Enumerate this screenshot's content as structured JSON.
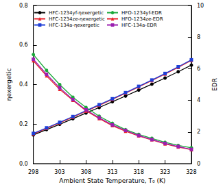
{
  "chart_data": {
    "type": "line",
    "x_label": "Ambient State Temperature, T₀ (K)",
    "y_label": "ηexergetic",
    "y2_label": "EDR",
    "x": [
      298,
      300.5,
      303,
      305.5,
      308,
      310.5,
      313,
      315.5,
      318,
      320.5,
      323,
      325.5,
      328
    ],
    "xlim": [
      298,
      328
    ],
    "xticks": [
      298,
      303,
      308,
      313,
      318,
      323,
      328
    ],
    "ylim": [
      0,
      0.8
    ],
    "yticks": [
      {
        "value": 0,
        "label": "0.0"
      },
      0.2,
      0.4,
      0.6,
      0.8
    ],
    "y2lim": [
      0,
      10
    ],
    "y2ticks": [
      0,
      2,
      4,
      6,
      8,
      10
    ],
    "grid": false,
    "legend": "upper left",
    "series": [
      {
        "name": "HFC-1234yf-ηexergetic",
        "color": "#000000",
        "marker": "circle",
        "values": [
          0.145,
          0.172,
          0.199,
          0.227,
          0.256,
          0.284,
          0.313,
          0.342,
          0.372,
          0.402,
          0.433,
          0.465,
          0.498
        ]
      },
      {
        "name": "HFC-1234ze-ηexergetic",
        "color": "#e8202a",
        "marker": "triangle",
        "values": [
          0.15,
          0.178,
          0.206,
          0.235,
          0.265,
          0.295,
          0.325,
          0.356,
          0.388,
          0.42,
          0.453,
          0.487,
          0.522
        ]
      },
      {
        "name": "HFC-134a-ηexergetic",
        "color": "#1f3fd6",
        "marker": "square",
        "values": [
          0.153,
          0.181,
          0.209,
          0.238,
          0.268,
          0.298,
          0.328,
          0.359,
          0.391,
          0.423,
          0.456,
          0.49,
          0.525
        ]
      },
      {
        "name": "HFO-1234yf-EDR",
        "color": "#1aa83a",
        "marker": "circle",
        "axis": "y2",
        "values": [
          6.9,
          5.9,
          5.0,
          4.2,
          3.55,
          3.0,
          2.55,
          2.15,
          1.85,
          1.6,
          1.35,
          1.15,
          1.0
        ]
      },
      {
        "name": "HFO-1234ze-EDR",
        "color": "#e8202a",
        "marker": "triangle",
        "axis": "y2",
        "values": [
          6.5,
          5.55,
          4.7,
          4.0,
          3.35,
          2.85,
          2.4,
          2.05,
          1.75,
          1.5,
          1.25,
          1.05,
          0.88
        ]
      },
      {
        "name": "HFC-134a-EDR",
        "color": "#9b1fb0",
        "marker": "square",
        "axis": "y2",
        "values": [
          6.6,
          5.65,
          4.8,
          4.05,
          3.4,
          2.9,
          2.45,
          2.1,
          1.78,
          1.52,
          1.28,
          1.08,
          0.9
        ]
      }
    ]
  }
}
